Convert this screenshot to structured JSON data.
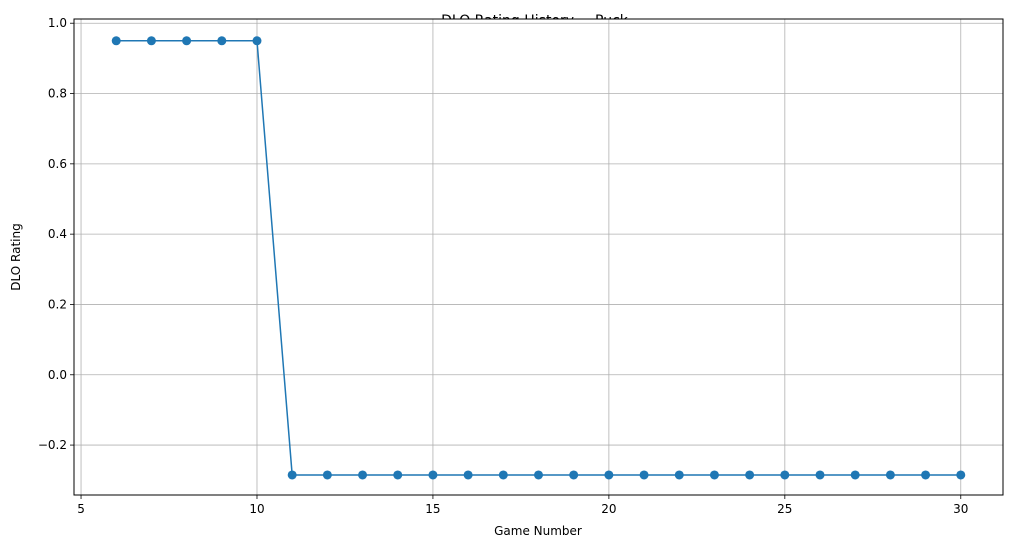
{
  "chart_data": {
    "type": "line",
    "title": "DLO Rating History - _Puck_",
    "xlabel": "Game Number",
    "ylabel": "DLO Rating",
    "xlim": [
      4.8,
      31.2
    ],
    "ylim": [
      -0.342,
      1.012
    ],
    "x_ticks": [
      5,
      10,
      15,
      20,
      25,
      30
    ],
    "y_ticks": [
      -0.2,
      0.0,
      0.2,
      0.4,
      0.6,
      0.8,
      1.0
    ],
    "x_tick_labels": [
      "5",
      "10",
      "15",
      "20",
      "25",
      "30"
    ],
    "y_tick_labels": [
      "−0.2",
      "0.0",
      "0.2",
      "0.4",
      "0.6",
      "0.8",
      "1.0"
    ],
    "grid": true,
    "series": [
      {
        "color": "#1f77b4",
        "marker": "circle",
        "x": [
          6,
          7,
          8,
          9,
          10,
          11,
          12,
          13,
          14,
          15,
          16,
          17,
          18,
          19,
          20,
          21,
          22,
          23,
          24,
          25,
          26,
          27,
          28,
          29,
          30
        ],
        "y": [
          0.95,
          0.95,
          0.95,
          0.95,
          0.95,
          -0.285,
          -0.285,
          -0.285,
          -0.285,
          -0.285,
          -0.285,
          -0.285,
          -0.285,
          -0.285,
          -0.285,
          -0.285,
          -0.285,
          -0.285,
          -0.285,
          -0.285,
          -0.285,
          -0.285,
          -0.285,
          -0.285,
          -0.285
        ]
      }
    ]
  }
}
